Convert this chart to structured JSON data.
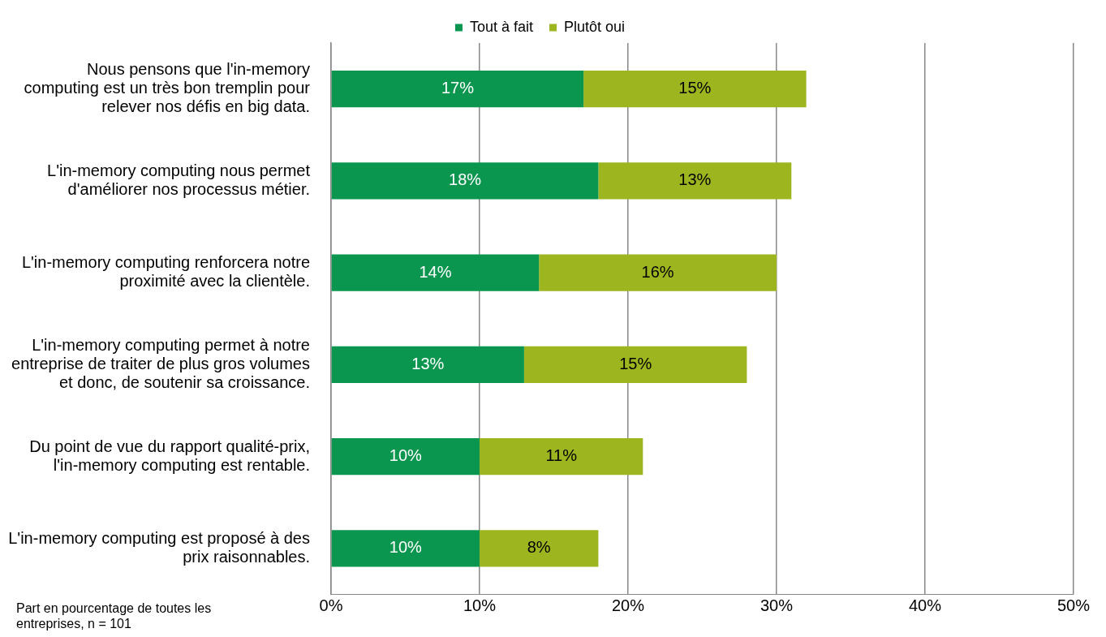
{
  "chart_data": {
    "type": "bar",
    "orientation": "horizontal",
    "stacked": true,
    "categories": [
      "Nous pensons que l'in-memory computing est un très bon tremplin pour relever nos défis en big data.",
      "L'in-memory computing nous permet d'améliorer nos processus métier.",
      "L'in-memory computing renforcera notre proximité avec la clientèle.",
      "L'in-memory computing permet à notre entreprise de traiter de plus gros volumes et donc, de soutenir sa croissance.",
      "Du point de vue du rapport qualité-prix, l'in-memory computing est rentable.",
      "L'in-memory computing est proposé à des prix raisonnables."
    ],
    "series": [
      {
        "name": "Tout à fait",
        "color": "#0b9650",
        "values": [
          17,
          18,
          14,
          13,
          10,
          10
        ],
        "value_labels": [
          "17%",
          "18%",
          "14%",
          "13%",
          "10%",
          "10%"
        ]
      },
      {
        "name": "Plutôt oui",
        "color": "#9db51f",
        "values": [
          15,
          13,
          16,
          15,
          11,
          8
        ],
        "value_labels": [
          "15%",
          "13%",
          "16%",
          "15%",
          "11%",
          "8%"
        ]
      }
    ],
    "xlim": [
      0,
      50
    ],
    "xticks": [
      {
        "value": 0,
        "label": "0%"
      },
      {
        "value": 10,
        "label": "10%"
      },
      {
        "value": 20,
        "label": "20%"
      },
      {
        "value": 30,
        "label": "30%"
      },
      {
        "value": 40,
        "label": "40%"
      },
      {
        "value": 50,
        "label": "50%"
      }
    ],
    "grid": "x",
    "legend": "top",
    "annotations": [
      "Part en pourcentage de toutes les entreprises, n = 101"
    ]
  }
}
